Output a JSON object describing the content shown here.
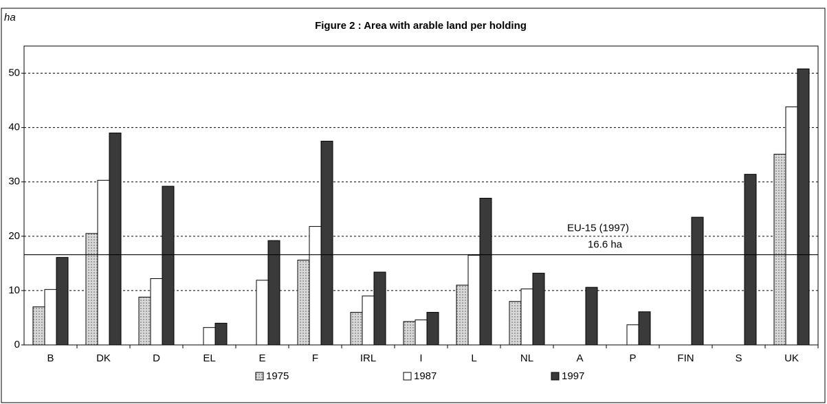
{
  "chart_data": {
    "type": "bar",
    "title": "Figure 2 : Area with arable land per holding",
    "y_label": "ha",
    "categories": [
      "B",
      "DK",
      "D",
      "EL",
      "E",
      "F",
      "IRL",
      "I",
      "L",
      "NL",
      "A",
      "P",
      "FIN",
      "S",
      "UK"
    ],
    "series": [
      {
        "name": "1975",
        "color": "#d8d8d8",
        "values": [
          7,
          20.5,
          8.8,
          null,
          null,
          15.6,
          6,
          4.3,
          11,
          8,
          null,
          null,
          null,
          null,
          35.1
        ]
      },
      {
        "name": "1987",
        "color": "#ffffff",
        "values": [
          10.2,
          30.3,
          12.2,
          3.2,
          11.9,
          21.8,
          9,
          4.6,
          16.5,
          10.3,
          null,
          3.7,
          null,
          null,
          43.8
        ]
      },
      {
        "name": "1997",
        "color": "#3a3a3a",
        "values": [
          16.1,
          39,
          29.2,
          4,
          19.2,
          37.5,
          13.4,
          6,
          27,
          13.2,
          10.6,
          6.1,
          23.5,
          31.4,
          50.8
        ]
      }
    ],
    "ylim": [
      0,
      55
    ],
    "yticks": [
      0,
      10,
      20,
      30,
      40,
      50
    ],
    "grid": true,
    "reference_line": {
      "value": 16.6,
      "label": "EU-15 (1997)",
      "value_label": "16.6 ha"
    },
    "legend": "bottom"
  }
}
